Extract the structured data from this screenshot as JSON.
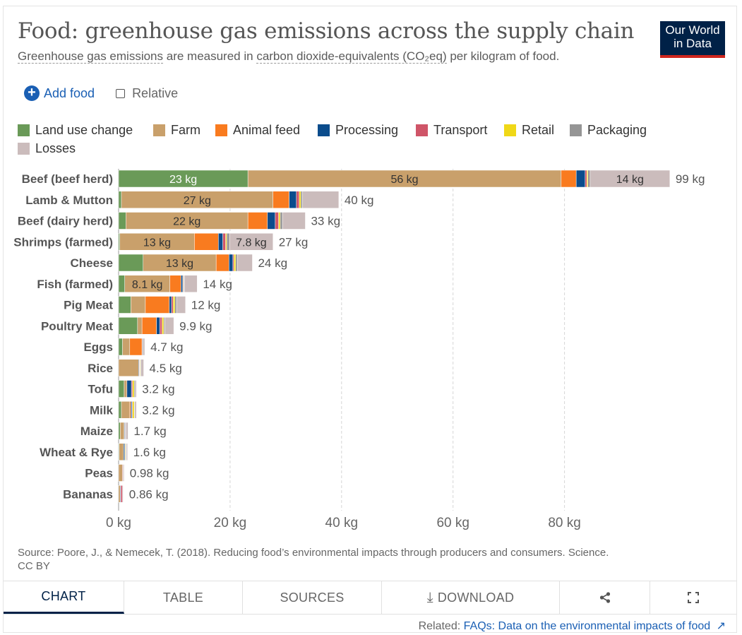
{
  "header": {
    "title": "Food: greenhouse gas emissions across the supply chain",
    "subtitle_parts": [
      "Greenhouse gas emissions",
      " are measured in ",
      "carbon dioxide-equivalents (CO₂eq)",
      " per kilogram of food."
    ],
    "logo_line1": "Our World",
    "logo_line2": "in Data"
  },
  "controls": {
    "add_food_icon": "+",
    "add_food_label": "Add food",
    "relative_label": "Relative"
  },
  "colors": {
    "land_use_change": "#6a9a58",
    "farm": "#c9a06b",
    "animal_feed": "#f97b1f",
    "processing": "#0b4c8c",
    "transport": "#cf5568",
    "retail": "#f0d817",
    "packaging": "#959595",
    "losses": "#cbbcbc"
  },
  "chart_data": {
    "type": "bar",
    "orientation": "horizontal",
    "stacked": true,
    "title": "Food: greenhouse gas emissions across the supply chain",
    "xlabel": "",
    "ylabel": "",
    "xlim": [
      0,
      100
    ],
    "x_ticks": [
      0,
      20,
      40,
      60,
      80
    ],
    "x_tick_labels": [
      "0 kg",
      "20 kg",
      "40 kg",
      "60 kg",
      "80 kg"
    ],
    "grid": true,
    "legend_position": "top",
    "series_names": [
      "Land use change",
      "Farm",
      "Animal feed",
      "Processing",
      "Transport",
      "Retail",
      "Packaging",
      "Losses"
    ],
    "series_keys": [
      "land_use_change",
      "farm",
      "animal_feed",
      "processing",
      "transport",
      "retail",
      "packaging",
      "losses"
    ],
    "categories": [
      "Beef (beef herd)",
      "Lamb & Mutton",
      "Beef (dairy herd)",
      "Shrimps (farmed)",
      "Cheese",
      "Fish (farmed)",
      "Pig Meat",
      "Poultry Meat",
      "Eggs",
      "Rice",
      "Tofu",
      "Milk",
      "Maize",
      "Wheat & Rye",
      "Peas",
      "Bananas"
    ],
    "totals": [
      "99 kg",
      "40 kg",
      "33 kg",
      "27 kg",
      "24 kg",
      "14 kg",
      "12 kg",
      "9.9 kg",
      "4.7 kg",
      "4.5 kg",
      "3.2 kg",
      "3.2 kg",
      "1.7 kg",
      "1.6 kg",
      "0.98 kg",
      "0.86 kg"
    ],
    "rows": [
      {
        "values": [
          23.2,
          56.2,
          2.7,
          1.6,
          0.3,
          0.2,
          0.4,
          14.3
        ],
        "labels": {
          "0": "23 kg",
          "1": "56 kg",
          "7": "14 kg"
        }
      },
      {
        "values": [
          0.5,
          27.2,
          2.9,
          1.3,
          0.5,
          0.3,
          0.3,
          6.5
        ],
        "labels": {
          "1": "27 kg"
        }
      },
      {
        "values": [
          1.3,
          21.9,
          3.5,
          1.4,
          0.6,
          0.3,
          0.4,
          4.1
        ],
        "labels": {
          "1": "22 kg"
        }
      },
      {
        "values": [
          0.2,
          13.4,
          4.3,
          0.8,
          0.5,
          0.2,
          0.5,
          7.8
        ],
        "labels": {
          "1": "13 kg",
          "7": "7.8 kg"
        }
      },
      {
        "values": [
          4.4,
          13.1,
          2.3,
          0.7,
          0.2,
          0.3,
          0.3,
          2.7
        ],
        "labels": {
          "1": "13 kg"
        }
      },
      {
        "values": [
          1.1,
          8.1,
          2.0,
          0.3,
          0.1,
          0.1,
          0.1,
          2.3
        ],
        "labels": {
          "1": "8.1 kg"
        }
      },
      {
        "values": [
          2.2,
          2.6,
          4.3,
          0.4,
          0.3,
          0.3,
          0.3,
          1.6
        ],
        "labels": {}
      },
      {
        "values": [
          3.4,
          0.8,
          2.6,
          0.6,
          0.4,
          0.3,
          0.2,
          1.6
        ],
        "labels": {}
      },
      {
        "values": [
          0.7,
          1.3,
          2.2,
          0.0,
          0.1,
          0.0,
          0.2,
          0.2
        ],
        "labels": {}
      },
      {
        "values": [
          0.0,
          3.6,
          0.0,
          0.1,
          0.1,
          0.1,
          0.1,
          0.5
        ],
        "labels": {}
      },
      {
        "values": [
          1.0,
          0.5,
          0.0,
          0.8,
          0.2,
          0.3,
          0.2,
          0.2
        ],
        "labels": {}
      },
      {
        "values": [
          0.5,
          1.5,
          0.2,
          0.2,
          0.1,
          0.3,
          0.1,
          0.3
        ],
        "labels": {}
      },
      {
        "values": [
          0.3,
          0.7,
          0.0,
          0.1,
          0.1,
          0.0,
          0.1,
          0.4
        ],
        "labels": {}
      },
      {
        "values": [
          0.1,
          0.8,
          0.0,
          0.2,
          0.1,
          0.1,
          0.1,
          0.2
        ],
        "labels": {}
      },
      {
        "values": [
          0.0,
          0.7,
          0.0,
          0.0,
          0.1,
          0.0,
          0.0,
          0.18
        ],
        "labels": {}
      },
      {
        "values": [
          0.0,
          0.3,
          0.0,
          0.1,
          0.3,
          0.0,
          0.1,
          0.06
        ],
        "labels": {}
      }
    ]
  },
  "footer": {
    "source": "Source: Poore, J., & Nemecek, T. (2018). Reducing food’s environmental impacts through producers and consumers. Science.",
    "license": "CC BY",
    "tabs": [
      "CHART",
      "TABLE",
      "SOURCES",
      "DOWNLOAD"
    ],
    "download_icon": "⤓",
    "share_icon": "share-icon",
    "fullscreen_icon": "fullscreen-icon",
    "related_prefix": "Related: ",
    "related_link": "FAQs: Data on the environmental impacts of food",
    "external_icon": "↗"
  }
}
